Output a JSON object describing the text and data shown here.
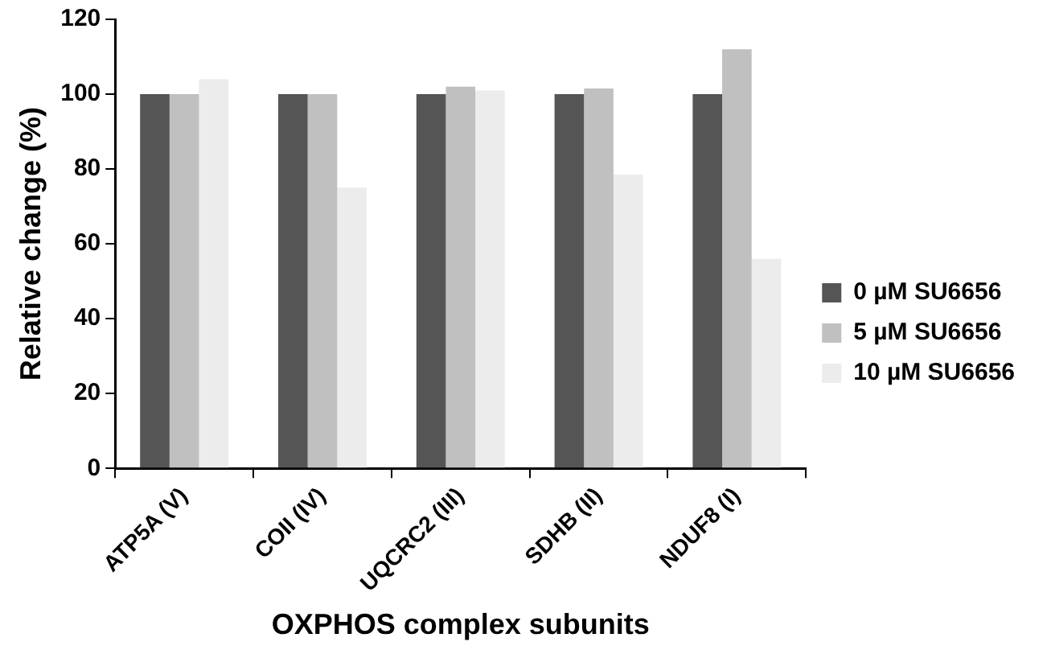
{
  "chart_data": {
    "type": "bar",
    "xlabel": "OXPHOS complex subunits",
    "ylabel": "Relative change (%)",
    "categories": [
      "ATP5A (V)",
      "COII (IV)",
      "UQCRC2 (III)",
      "SDHB (II)",
      "NDUF8 (I)"
    ],
    "series": [
      {
        "name": "0 µM SU6656",
        "color": "#555555",
        "values": [
          100,
          100,
          100,
          100,
          100
        ]
      },
      {
        "name": "5 µM SU6656",
        "color": "#c0c0c0",
        "values": [
          100,
          100,
          102,
          101.5,
          112
        ]
      },
      {
        "name": "10 µM SU6656",
        "color": "#ececec",
        "values": [
          104,
          75,
          101,
          78.5,
          56
        ]
      }
    ],
    "ylim": [
      0,
      120
    ],
    "yticks": [
      0,
      20,
      40,
      60,
      80,
      100,
      120
    ],
    "grid": false,
    "legend": "right"
  }
}
